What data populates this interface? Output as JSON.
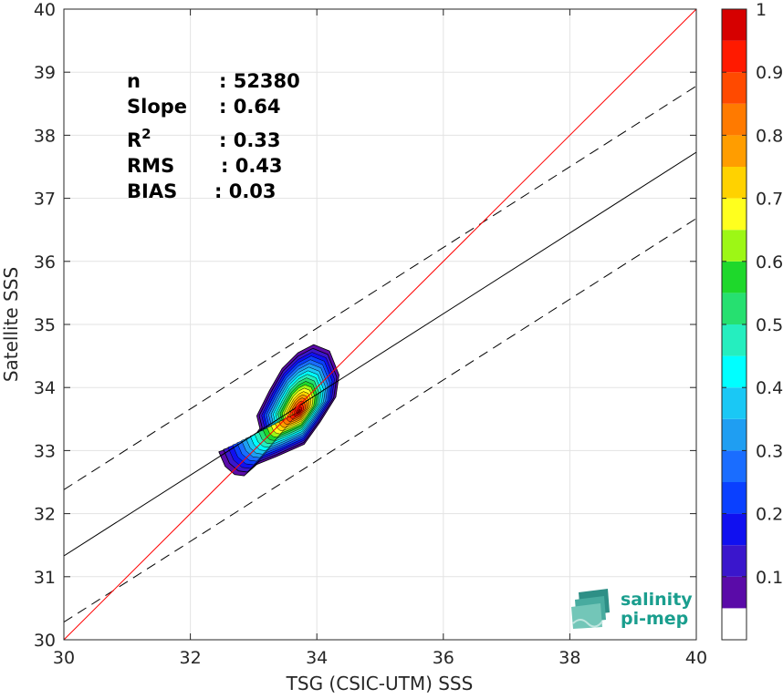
{
  "chart_data": {
    "type": "scatter",
    "subtype": "density-contour",
    "xlabel": "TSG (CSIC-UTM) SSS",
    "ylabel": "Satellite SSS",
    "xlim": [
      30,
      40
    ],
    "ylim": [
      30,
      40
    ],
    "xticks": [
      "30",
      "32",
      "34",
      "36",
      "38",
      "40"
    ],
    "yticks": [
      "30",
      "31",
      "32",
      "33",
      "34",
      "35",
      "36",
      "37",
      "38",
      "39",
      "40"
    ],
    "grid": true,
    "stats": [
      {
        "label": "n",
        "value": ": 52380"
      },
      {
        "label": "Slope",
        "value": ": 0.64"
      },
      {
        "label": "R",
        "sup": "2",
        "value": ": 0.33"
      },
      {
        "label": "RMS",
        "value": ": 0.43"
      },
      {
        "label": "BIAS",
        "value": ": 0.03"
      }
    ],
    "lines": {
      "identity": {
        "x": [
          30,
          40
        ],
        "y": [
          30,
          40
        ],
        "color": "#ff0000"
      },
      "fit": {
        "x": [
          30,
          40
        ],
        "y": [
          31.33,
          37.73
        ],
        "color": "#000000"
      },
      "fit_upper": {
        "x": [
          30,
          40
        ],
        "y": [
          32.38,
          38.78
        ],
        "color": "#000000",
        "dash": true
      },
      "fit_lower": {
        "x": [
          30,
          40
        ],
        "y": [
          30.28,
          36.68
        ],
        "color": "#000000",
        "dash": true
      }
    },
    "density_peak": {
      "x": 33.72,
      "y": 33.62
    },
    "contour_levels": [
      0.05,
      0.1,
      0.15,
      0.2,
      0.25,
      0.3,
      0.35,
      0.4,
      0.45,
      0.5,
      0.55,
      0.6,
      0.65,
      0.7,
      0.75,
      0.8,
      0.85,
      0.9,
      0.95,
      1.0
    ],
    "contour_colors": [
      "#5a0ba8",
      "#3a16cc",
      "#1010f0",
      "#0a40ff",
      "#1a6dff",
      "#1f9ef2",
      "#1ac8f5",
      "#00ffff",
      "#25eebf",
      "#26e070",
      "#1ed82b",
      "#9df715",
      "#ffff1e",
      "#ffd200",
      "#ff9d00",
      "#ff7a00",
      "#ff4a00",
      "#ff1a00",
      "#d60000",
      "#8a0000"
    ],
    "colorbar": {
      "range": [
        0,
        1
      ],
      "ticks": [
        "0.1",
        "0.2",
        "0.3",
        "0.4",
        "0.5",
        "0.6",
        "0.7",
        "0.8",
        "0.9",
        "1"
      ],
      "tick_values": [
        0.1,
        0.2,
        0.3,
        0.4,
        0.5,
        0.6,
        0.7,
        0.8,
        0.9,
        1.0
      ],
      "lowest_color": "#ffffff"
    }
  },
  "logo": {
    "line1": "salinity",
    "line2": "pi-mep",
    "color": "#1a9e8e"
  }
}
